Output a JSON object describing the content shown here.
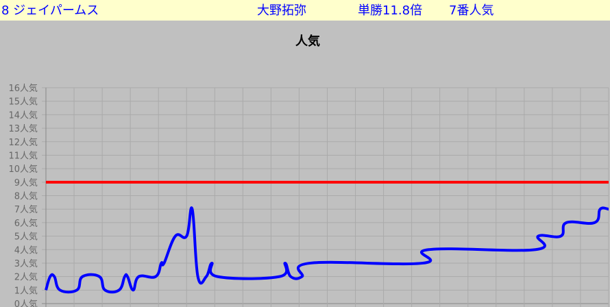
{
  "header": {
    "horse": "8 ジェイパームス",
    "jockey": "大野拓弥",
    "odds": "単勝11.8倍",
    "popularity": "7番人気"
  },
  "chart_data": {
    "type": "line",
    "title": "人気",
    "ylim": [
      0,
      16
    ],
    "xlim": [
      0,
      20
    ],
    "grid": true,
    "y_tick_labels": [
      "0人気",
      "1人気",
      "2人気",
      "3人気",
      "4人気",
      "5人気",
      "6人気",
      "7人気",
      "8人気",
      "9人気",
      "10人気",
      "11人気",
      "12人気",
      "13人気",
      "14人気",
      "15人気",
      "16人気"
    ],
    "series": [
      {
        "color": "#0000ff",
        "x": [
          0,
          0.15,
          0.3,
          0.5,
          1.1,
          1.3,
          1.9,
          2.1,
          2.6,
          2.8,
          2.9,
          3.1,
          3.3,
          3.9,
          4.1,
          4.2,
          4.6,
          5.0,
          5.2,
          5.4,
          5.7,
          5.9,
          6.1,
          8.3,
          8.5,
          8.7,
          9.1,
          9.4,
          13.4,
          13.6,
          17.4,
          17.5,
          18.3,
          18.5,
          19.5,
          19.7,
          20
        ],
        "y": [
          1,
          2,
          2,
          1,
          1,
          2,
          2,
          1,
          1,
          2,
          2,
          1,
          2,
          2,
          3,
          3,
          5,
          5,
          7,
          2,
          2,
          3,
          2,
          2,
          3,
          2,
          2,
          3,
          3,
          4,
          4,
          5,
          5,
          6,
          6,
          7,
          7
        ]
      },
      {
        "color": "#ff0000",
        "x": [
          0,
          20
        ],
        "y": [
          9,
          9
        ]
      }
    ]
  }
}
